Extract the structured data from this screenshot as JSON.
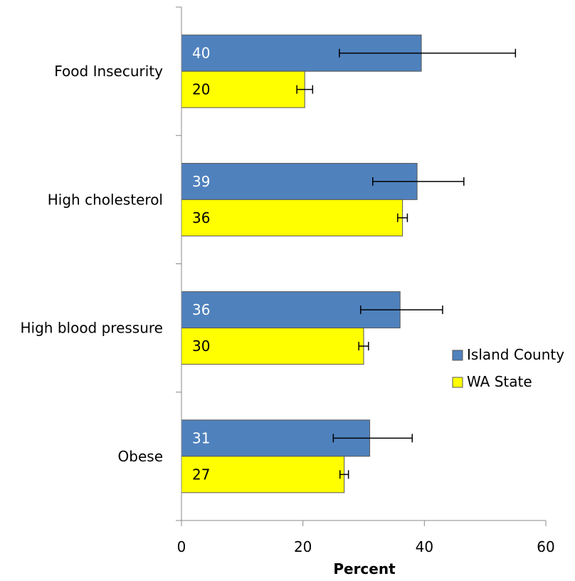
{
  "chart_data": {
    "type": "bar",
    "orientation": "horizontal",
    "title": "",
    "xlabel": "Percent",
    "ylabel": "",
    "xlim": [
      0,
      60
    ],
    "xticks": [
      0,
      20,
      40,
      60
    ],
    "grid": false,
    "legend_position": "right",
    "categories": [
      "Food Insecurity",
      "High cholesterol",
      "High blood pressure",
      "Obese"
    ],
    "series": [
      {
        "name": "Island County",
        "color": "#4F81BD",
        "label_color": "#ffffff",
        "values": [
          39.5,
          38.8,
          36.0,
          31.0
        ],
        "labels": [
          "40",
          "39",
          "36",
          "31"
        ],
        "error_low": [
          26.0,
          31.5,
          29.5,
          25.0
        ],
        "error_high": [
          55.0,
          46.5,
          43.0,
          38.0
        ]
      },
      {
        "name": "WA State",
        "color": "#FFFF00",
        "label_color": "#000000",
        "values": [
          20.3,
          36.4,
          30.0,
          26.8
        ],
        "labels": [
          "20",
          "36",
          "30",
          "27"
        ],
        "error_low": [
          19.0,
          35.6,
          29.2,
          26.1
        ],
        "error_high": [
          21.6,
          37.2,
          30.8,
          27.5
        ]
      }
    ]
  }
}
